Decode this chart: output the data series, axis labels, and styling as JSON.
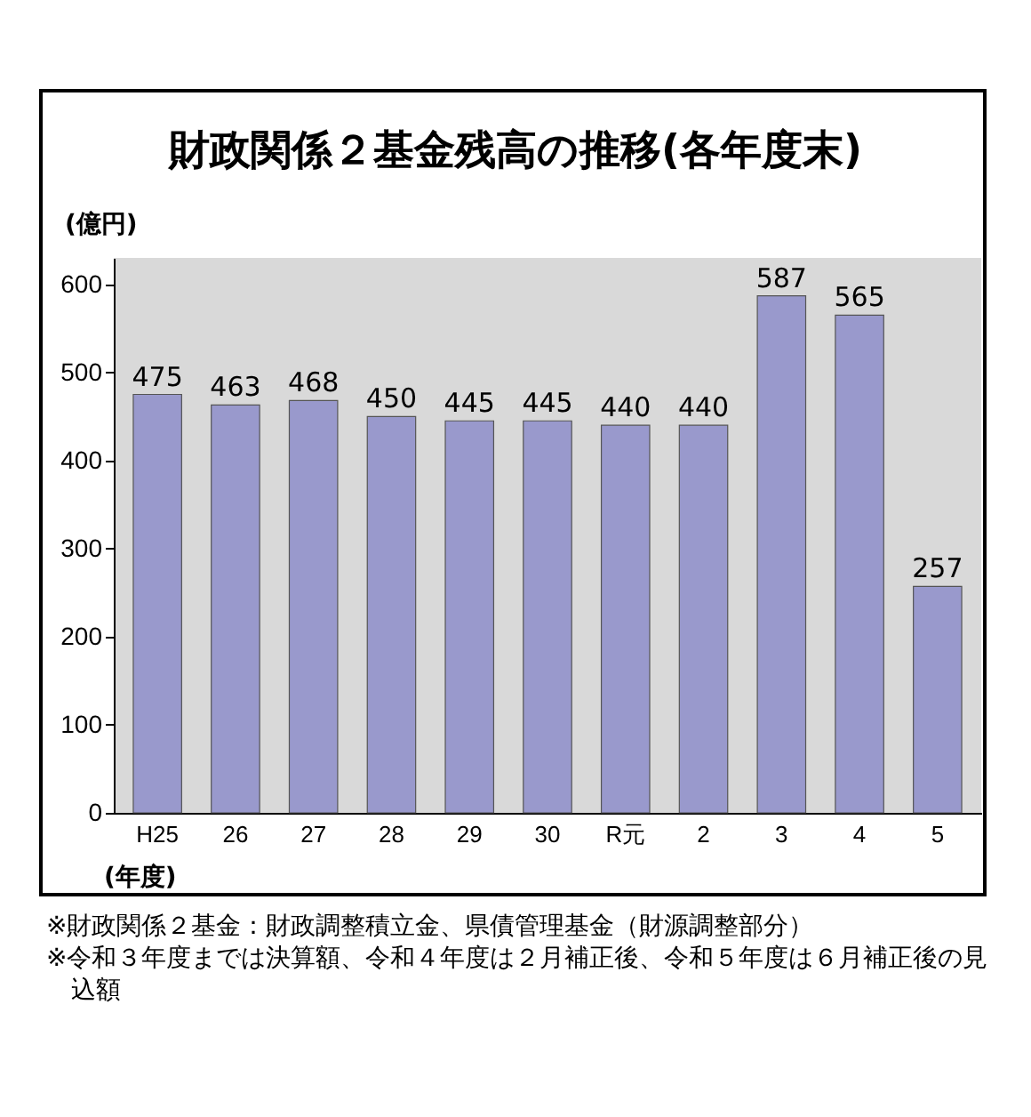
{
  "chart_data": {
    "type": "bar",
    "title": "財政関係２基金残高の推移(各年度末)",
    "ylabel": "(億円)",
    "xlabel": "(年度)",
    "categories": [
      "H25",
      "26",
      "27",
      "28",
      "29",
      "30",
      "R元",
      "2",
      "3",
      "4",
      "5"
    ],
    "values": [
      475,
      463,
      468,
      450,
      445,
      445,
      440,
      440,
      587,
      565,
      257
    ],
    "color": "#9999cc",
    "ylim": [
      0,
      630
    ],
    "yticks": [
      0,
      100,
      200,
      300,
      400,
      500,
      600
    ],
    "data_labels": true,
    "annotations": [
      "※財政関係２基金：財政調整積立金、県債管理基金（財源調整部分）",
      "※令和３年度までは決算額、令和４年度は２月補正後、令和５年度は６月補正後の見込額"
    ]
  }
}
